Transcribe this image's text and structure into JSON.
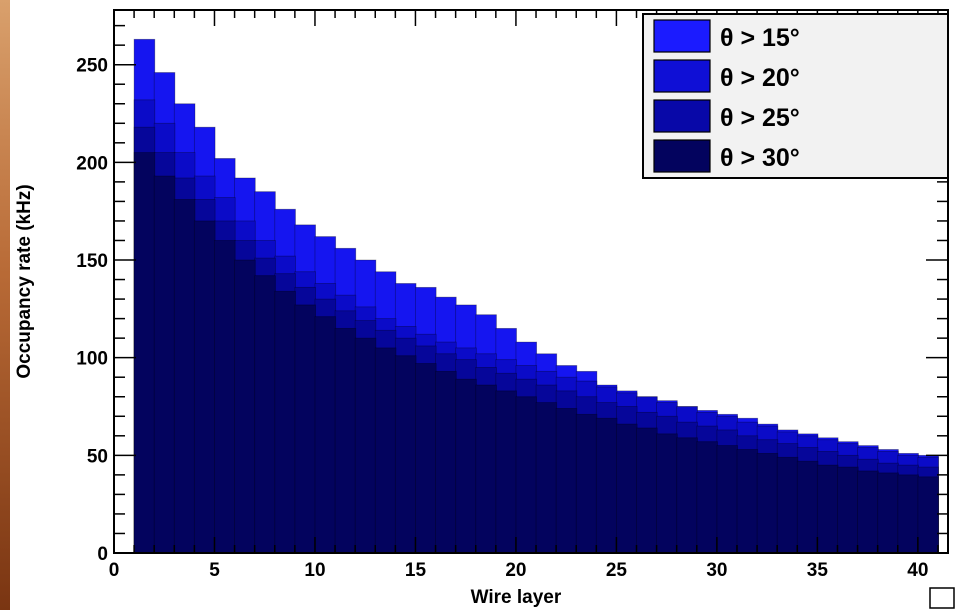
{
  "chart_data": {
    "type": "histogram",
    "xlabel": "Wire layer",
    "ylabel": "Occupancy rate (kHz)",
    "xlim": [
      0,
      41.5
    ],
    "ylim": [
      0,
      278
    ],
    "x_ticks": [
      0,
      5,
      10,
      15,
      20,
      25,
      30,
      35,
      40
    ],
    "y_ticks": [
      0,
      50,
      100,
      150,
      200,
      250
    ],
    "grid": false,
    "legend_position": "top-right",
    "bin_start": 1,
    "bin_width": 1,
    "series": [
      {
        "name": "θ > 15°",
        "color": "#1515f0",
        "values": [
          263,
          246,
          230,
          218,
          202,
          192,
          185,
          176,
          168,
          162,
          156,
          150,
          144,
          138,
          136,
          131,
          127,
          122,
          115,
          108,
          102,
          96,
          93,
          86,
          83,
          80,
          78,
          75,
          73,
          71,
          69,
          66,
          63,
          61,
          59,
          57,
          55,
          53,
          51,
          50
        ]
      },
      {
        "name": "θ > 20°",
        "color": "#0b0bc8",
        "values": [
          232,
          220,
          205,
          193,
          182,
          170,
          160,
          152,
          144,
          138,
          132,
          126,
          120,
          116,
          112,
          108,
          105,
          102,
          99,
          96,
          93,
          90,
          88,
          85,
          82,
          80,
          77,
          75,
          72,
          70,
          67,
          65,
          62,
          60,
          58,
          56,
          54,
          52,
          50,
          49
        ]
      },
      {
        "name": "θ > 25°",
        "color": "#06069a",
        "values": [
          218,
          205,
          192,
          181,
          170,
          160,
          151,
          143,
          136,
          130,
          124,
          119,
          114,
          110,
          106,
          102,
          99,
          95,
          92,
          89,
          86,
          83,
          80,
          77,
          75,
          72,
          70,
          67,
          65,
          63,
          60,
          58,
          56,
          54,
          52,
          50,
          48,
          46,
          45,
          44
        ]
      },
      {
        "name": "θ > 30°",
        "color": "#03035e",
        "values": [
          205,
          193,
          181,
          170,
          160,
          150,
          142,
          134,
          127,
          121,
          115,
          110,
          105,
          101,
          97,
          93,
          89,
          86,
          83,
          80,
          77,
          74,
          71,
          69,
          66,
          64,
          61,
          59,
          57,
          55,
          53,
          51,
          49,
          47,
          45,
          44,
          42,
          41,
          40,
          39
        ]
      }
    ]
  }
}
